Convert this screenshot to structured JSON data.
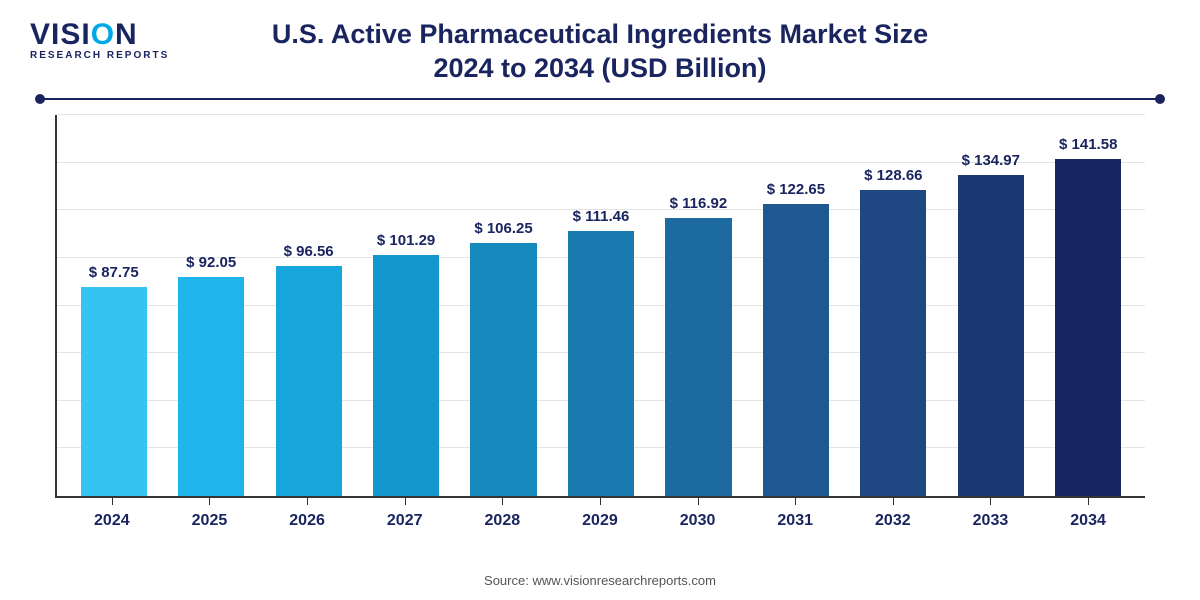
{
  "logo": {
    "line1_pre": "VISI",
    "line1_accent": "O",
    "line1_post": "N",
    "line2": "RESEARCH REPORTS",
    "color_main": "#1a2560",
    "color_accent": "#00a8e8"
  },
  "title": {
    "line1": "U.S. Active Pharmaceutical Ingredients Market Size",
    "line2": "2024 to 2034 (USD Billion)",
    "fontsize": 27,
    "color": "#1a2560"
  },
  "rule_color": "#1a2560",
  "chart": {
    "type": "bar",
    "categories": [
      "2024",
      "2025",
      "2026",
      "2027",
      "2028",
      "2029",
      "2030",
      "2031",
      "2032",
      "2033",
      "2034"
    ],
    "values": [
      87.75,
      92.05,
      96.56,
      101.29,
      106.25,
      111.46,
      116.92,
      122.65,
      128.66,
      134.97,
      141.58
    ],
    "value_labels": [
      "$ 87.75",
      "$ 92.05",
      "$ 96.56",
      "$ 101.29",
      "$ 106.25",
      "$ 111.46",
      "$ 116.92",
      "$ 122.65",
      "$ 128.66",
      "$ 134.97",
      "$ 141.58"
    ],
    "bar_colors": [
      "#35c3f2",
      "#1fb5ea",
      "#16a6dc",
      "#1497cd",
      "#1788be",
      "#1a79af",
      "#1d6aa0",
      "#205991",
      "#1f4883",
      "#1b3774",
      "#172665"
    ],
    "ylim": [
      0,
      160
    ],
    "grid_count": 8,
    "grid_color": "#e5e5e5",
    "axis_color": "#333333",
    "bar_width_pct": 72,
    "value_label_fontsize": 15,
    "xtick_fontsize": 16,
    "label_color": "#1a2560"
  },
  "source": {
    "text": "Source: www.visionresearchreports.com",
    "fontsize": 13,
    "color": "#555555"
  }
}
